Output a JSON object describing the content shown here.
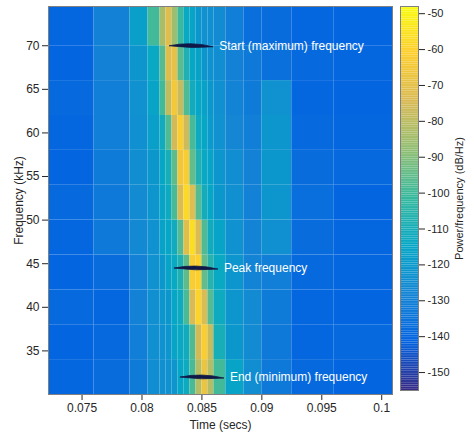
{
  "chart_data": {
    "type": "heatmap",
    "xlabel": "Time (secs)",
    "ylabel": "Frequency (kHz)",
    "xlim": [
      0.0722,
      0.1009
    ],
    "xticks": [
      0.075,
      0.08,
      0.085,
      0.09,
      0.095,
      0.1
    ],
    "ylim": [
      30,
      74.5
    ],
    "yticks": [
      35,
      40,
      45,
      50,
      55,
      60,
      65,
      70
    ],
    "x_edges": [
      0.0722,
      0.076,
      0.079,
      0.0805,
      0.0815,
      0.082,
      0.0825,
      0.083,
      0.0835,
      0.084,
      0.0845,
      0.085,
      0.0855,
      0.086,
      0.087,
      0.0885,
      0.09,
      0.0925,
      0.096,
      0.1009
    ],
    "y_edges": [
      30,
      34,
      38,
      42,
      46,
      50,
      54,
      58,
      62,
      66,
      70,
      74.5
    ],
    "cells": [
      [
        -140,
        -138,
        -132,
        -125,
        -124,
        -123,
        -122,
        -115,
        -113,
        -99,
        -82,
        -68,
        -82,
        -100,
        -116,
        -125,
        -133,
        -139,
        -141
      ],
      [
        -141,
        -139,
        -131,
        -124,
        -123,
        -122,
        -116,
        -114,
        -112,
        -98,
        -76,
        -62,
        -78,
        -110,
        -121,
        -126,
        -133,
        -140,
        -139
      ],
      [
        -139,
        -140,
        -130,
        -124,
        -122,
        -121,
        -115,
        -113,
        -99,
        -75,
        -60,
        -74,
        -97,
        -113,
        -122,
        -126,
        -132,
        -140,
        -141
      ],
      [
        -141,
        -138,
        -130,
        -123,
        -121,
        -116,
        -114,
        -108,
        -96,
        -63,
        -61,
        -95,
        -106,
        -114,
        -122,
        -129,
        -131,
        -139,
        -140
      ],
      [
        -140,
        -133,
        -127,
        -123,
        -117,
        -115,
        -112,
        -97,
        -72,
        -57,
        -74,
        -98,
        -112,
        -116,
        -123,
        -129,
        -124,
        -138,
        -140
      ],
      [
        -139,
        -133,
        -126,
        -122,
        -116,
        -113,
        -99,
        -74,
        -58,
        -73,
        -97,
        -111,
        -115,
        -121,
        -124,
        -130,
        -122,
        -137,
        -141
      ],
      [
        -141,
        -132,
        -125,
        -121,
        -115,
        -110,
        -96,
        -66,
        -63,
        -95,
        -108,
        -114,
        -116,
        -122,
        -125,
        -130,
        -121,
        -138,
        -139
      ],
      [
        -140,
        -131,
        -124,
        -118,
        -112,
        -98,
        -76,
        -62,
        -77,
        -99,
        -113,
        -115,
        -120,
        -123,
        -128,
        -131,
        -122,
        -139,
        -140
      ],
      [
        -139,
        -131,
        -123,
        -116,
        -100,
        -79,
        -65,
        -78,
        -98,
        -112,
        -115,
        -117,
        -121,
        -124,
        -129,
        -132,
        -123,
        -140,
        -141
      ],
      [
        -141,
        -130,
        -122,
        -114,
        -97,
        -72,
        -70,
        -96,
        -108,
        -115,
        -117,
        -121,
        -123,
        -125,
        -130,
        -133,
        -136,
        -139,
        -140
      ],
      [
        -140,
        -130,
        -118,
        -100,
        -84,
        -72,
        -86,
        -101,
        -114,
        -116,
        -121,
        -123,
        -124,
        -126,
        -131,
        -137,
        -138,
        -140,
        -141
      ]
    ],
    "colorbar": {
      "label": "Power/frequency (dB/Hz)",
      "lim": [
        -155,
        -48
      ],
      "ticks": [
        -150,
        -140,
        -130,
        -120,
        -110,
        -100,
        -90,
        -80,
        -70,
        -60,
        -50
      ]
    },
    "annotations": [
      {
        "text": "Start (maximum) frequency",
        "x": 0.0841,
        "y": 70
      },
      {
        "text": "Peak frequency",
        "x": 0.0845,
        "y": 44.5
      },
      {
        "text": "End (minimum) frequency",
        "x": 0.085,
        "y": 32
      }
    ]
  }
}
